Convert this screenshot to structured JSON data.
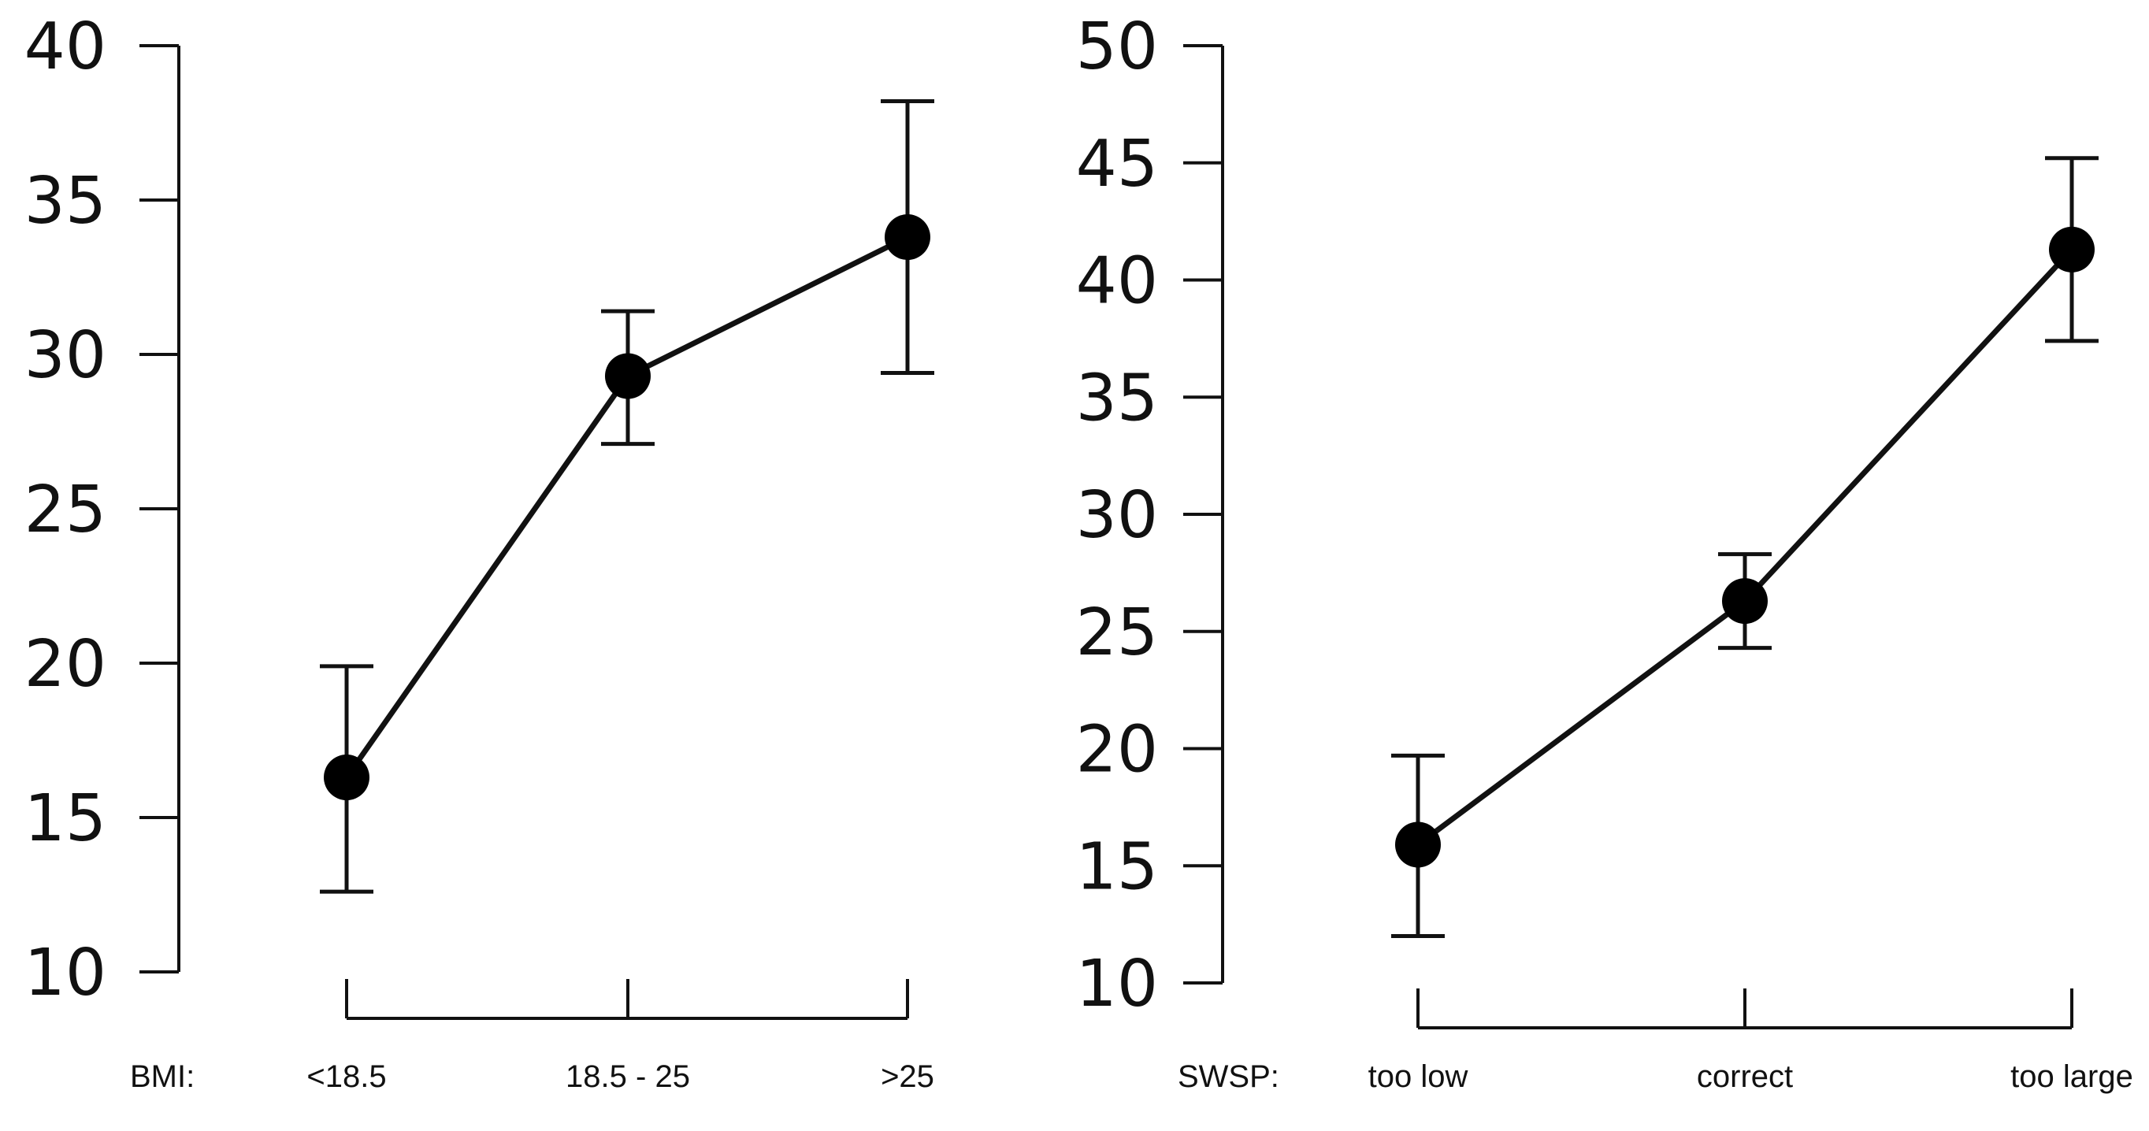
{
  "chart_data": [
    {
      "type": "line",
      "x_axis_title": "BMI:",
      "categories": [
        "<18.5",
        "18.5 - 25",
        ">25"
      ],
      "ylim": [
        10,
        40
      ],
      "yticks": [
        10,
        15,
        20,
        25,
        30,
        35,
        40
      ],
      "series": [
        {
          "values": [
            16.3,
            29.3,
            33.8
          ],
          "error_low": [
            12.6,
            27.1,
            29.4
          ],
          "error_high": [
            19.9,
            31.4,
            38.2
          ]
        }
      ],
      "marker": "filled-circle",
      "error_bars": true,
      "grid": false
    },
    {
      "type": "line",
      "x_axis_title": "SWSP:",
      "categories": [
        "too low",
        "correct",
        "too large"
      ],
      "ylim": [
        10,
        50
      ],
      "yticks": [
        10,
        15,
        20,
        25,
        30,
        35,
        40,
        45,
        50
      ],
      "series": [
        {
          "values": [
            15.9,
            26.3,
            41.3
          ],
          "error_low": [
            12.0,
            24.3,
            37.4
          ],
          "error_high": [
            19.7,
            28.3,
            45.2
          ]
        }
      ],
      "marker": "filled-circle",
      "error_bars": true,
      "grid": false
    }
  ]
}
